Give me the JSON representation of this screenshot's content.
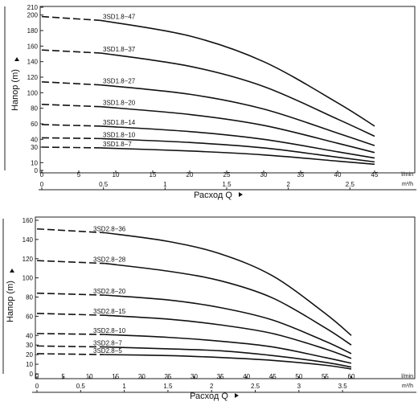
{
  "chart_data": [
    {
      "type": "line",
      "ylabel": "Напор (m)",
      "xlabel": "Расход Q",
      "x_unit_lmin": "l/min",
      "x_unit_m3h": "m³/h",
      "xlim": [
        0,
        45
      ],
      "ylim": [
        0,
        210
      ],
      "x_ticks_lmin": [
        "0",
        "5",
        "10",
        "15",
        "20",
        "25",
        "30",
        "35",
        "40",
        "45"
      ],
      "x_ticks_m3h": [
        "0",
        "0.5",
        "1",
        "1.5",
        "2",
        "2.5"
      ],
      "y_ticks": [
        "0",
        "10",
        "30",
        "40",
        "60",
        "80",
        "100",
        "120",
        "140",
        "160",
        "180",
        "200",
        "210"
      ],
      "dashed_until_x": 8,
      "series": [
        {
          "name": "3SD1.8−47",
          "x": [
            0,
            8,
            20,
            30,
            40,
            45
          ],
          "y": [
            198,
            193,
            173,
            140,
            87,
            57
          ]
        },
        {
          "name": "3SD1.8−37",
          "x": [
            0,
            8,
            20,
            30,
            40,
            45
          ],
          "y": [
            155,
            151,
            134,
            108,
            66,
            44
          ]
        },
        {
          "name": "3SD1.8−27",
          "x": [
            0,
            8,
            20,
            30,
            40,
            45
          ],
          "y": [
            114,
            110,
            98,
            79,
            48,
            32
          ]
        },
        {
          "name": "3SD1.8−20",
          "x": [
            0,
            8,
            20,
            30,
            40,
            45
          ],
          "y": [
            85,
            82,
            72,
            58,
            35,
            23
          ]
        },
        {
          "name": "3SD1.8−14",
          "x": [
            0,
            8,
            20,
            30,
            40,
            45
          ],
          "y": [
            59,
            57,
            50,
            40,
            24,
            16
          ]
        },
        {
          "name": "3SD1.8−10",
          "x": [
            0,
            8,
            20,
            30,
            40,
            45
          ],
          "y": [
            42,
            41,
            36,
            29,
            17,
            11
          ]
        },
        {
          "name": "3SD1.8−7",
          "x": [
            0,
            8,
            20,
            30,
            40,
            45
          ],
          "y": [
            30,
            29,
            25,
            20,
            12,
            8
          ]
        }
      ]
    },
    {
      "type": "line",
      "ylabel": "Напор (m)",
      "xlabel": "Расход Q",
      "x_unit_lmin": "l/min",
      "x_unit_m3h": "m³/h",
      "xlim": [
        0,
        60
      ],
      "ylim": [
        0,
        160
      ],
      "x_ticks_lmin": [
        "0",
        "5",
        "10",
        "15",
        "20",
        "25",
        "30",
        "35",
        "40",
        "45",
        "50",
        "55",
        "60"
      ],
      "x_ticks_m3h": [
        "0",
        "0.5",
        "1",
        "1.5",
        "2",
        "2.5",
        "3",
        "3.5"
      ],
      "y_ticks": [
        "0",
        "10",
        "20",
        "30",
        "40",
        "60",
        "80",
        "100",
        "120",
        "140",
        "160"
      ],
      "dashed_until_x": 13,
      "series": [
        {
          "name": "3SD2.8−36",
          "x": [
            0,
            13,
            25,
            35,
            45,
            55,
            60
          ],
          "y": [
            151,
            147,
            138,
            125,
            102,
            63,
            40
          ]
        },
        {
          "name": "3SD2.8−28",
          "x": [
            0,
            13,
            25,
            35,
            45,
            55,
            60
          ],
          "y": [
            118,
            115,
            107,
            97,
            79,
            48,
            30
          ]
        },
        {
          "name": "3SD2.8−20",
          "x": [
            0,
            13,
            25,
            35,
            45,
            55,
            60
          ],
          "y": [
            84,
            82,
            77,
            69,
            56,
            34,
            21
          ]
        },
        {
          "name": "3SD2.8−15",
          "x": [
            0,
            13,
            25,
            35,
            45,
            55,
            60
          ],
          "y": [
            63,
            61,
            57,
            51,
            42,
            26,
            16
          ]
        },
        {
          "name": "3SD2.8−10",
          "x": [
            0,
            13,
            25,
            35,
            45,
            55,
            60
          ],
          "y": [
            42,
            41,
            38,
            34,
            28,
            17,
            11
          ]
        },
        {
          "name": "3SD2.8−7",
          "x": [
            0,
            13,
            25,
            35,
            45,
            55,
            60
          ],
          "y": [
            29,
            28,
            26,
            24,
            19,
            12,
            7
          ]
        },
        {
          "name": "3SD2.8−5",
          "x": [
            0,
            13,
            25,
            35,
            45,
            55,
            60
          ],
          "y": [
            21,
            20,
            19,
            17,
            14,
            9,
            5
          ]
        }
      ]
    }
  ]
}
